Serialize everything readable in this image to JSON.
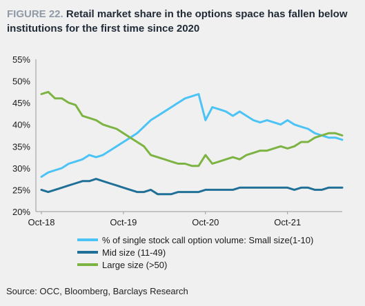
{
  "title": {
    "figure": "FIGURE 22.",
    "text": "Retail market share in the options space has fallen below institutions for the first time since 2020"
  },
  "source": "Source: OCC, Bloomberg, Barclays Research",
  "colors": {
    "small": "#4cc3f5",
    "mid": "#1f6f96",
    "large": "#7cb342",
    "background": "#f0f0f0",
    "axis": "#999999"
  },
  "chart_data": {
    "type": "line",
    "ylim": [
      20,
      55
    ],
    "yticks": [
      "20%",
      "25%",
      "30%",
      "35%",
      "40%",
      "45%",
      "50%",
      "55%"
    ],
    "xticks": [
      "Oct-18",
      "Oct-19",
      "Oct-20",
      "Oct-21"
    ],
    "grid": false,
    "legend_position": "bottom",
    "x": [
      "2018-10",
      "2018-11",
      "2018-12",
      "2019-01",
      "2019-02",
      "2019-03",
      "2019-04",
      "2019-05",
      "2019-06",
      "2019-07",
      "2019-08",
      "2019-09",
      "2019-10",
      "2019-11",
      "2019-12",
      "2020-01",
      "2020-02",
      "2020-03",
      "2020-04",
      "2020-05",
      "2020-06",
      "2020-07",
      "2020-08",
      "2020-09",
      "2020-10",
      "2020-11",
      "2020-12",
      "2021-01",
      "2021-02",
      "2021-03",
      "2021-04",
      "2021-05",
      "2021-06",
      "2021-07",
      "2021-08",
      "2021-09",
      "2021-10",
      "2021-11",
      "2021-12",
      "2022-01",
      "2022-02",
      "2022-03",
      "2022-04",
      "2022-05",
      "2022-06"
    ],
    "series": [
      {
        "name": "% of single stock call option volume: Small size(1-10)",
        "key": "small",
        "values": [
          28,
          29,
          29.5,
          30,
          31,
          31.5,
          32,
          33,
          32.5,
          33,
          34,
          35,
          36,
          37,
          38,
          39.5,
          41,
          42,
          43,
          44,
          45,
          46,
          46.5,
          47,
          41,
          44,
          43.5,
          43,
          42,
          43,
          42,
          41,
          40.5,
          41,
          40.5,
          40,
          41,
          40,
          39.5,
          39,
          38,
          37.5,
          37,
          37,
          36.5
        ]
      },
      {
        "name": "Mid size (11-49)",
        "key": "mid",
        "values": [
          25,
          24.5,
          25,
          25.5,
          26,
          26.5,
          27,
          27,
          27.5,
          27,
          26.5,
          26,
          25.5,
          25,
          24.5,
          24.5,
          25,
          24,
          24,
          24,
          24.5,
          24.5,
          24.5,
          24.5,
          25,
          25,
          25,
          25,
          25,
          25.5,
          25.5,
          25.5,
          25.5,
          25.5,
          25.5,
          25.5,
          25.5,
          25,
          25.5,
          25.5,
          25,
          25,
          25.5,
          25.5,
          25.5
        ]
      },
      {
        "name": "Large size (>50)",
        "key": "large",
        "values": [
          47,
          47.5,
          46,
          46,
          45,
          44.5,
          42,
          41.5,
          41,
          40,
          39.5,
          39,
          38,
          37,
          36,
          35,
          33,
          32.5,
          32,
          31.5,
          31,
          31,
          30.5,
          30.5,
          33,
          31,
          31.5,
          32,
          32.5,
          32,
          33,
          33.5,
          34,
          34,
          34.5,
          35,
          34.5,
          35,
          36,
          36,
          37,
          37.5,
          38,
          38,
          37.5
        ]
      }
    ]
  }
}
